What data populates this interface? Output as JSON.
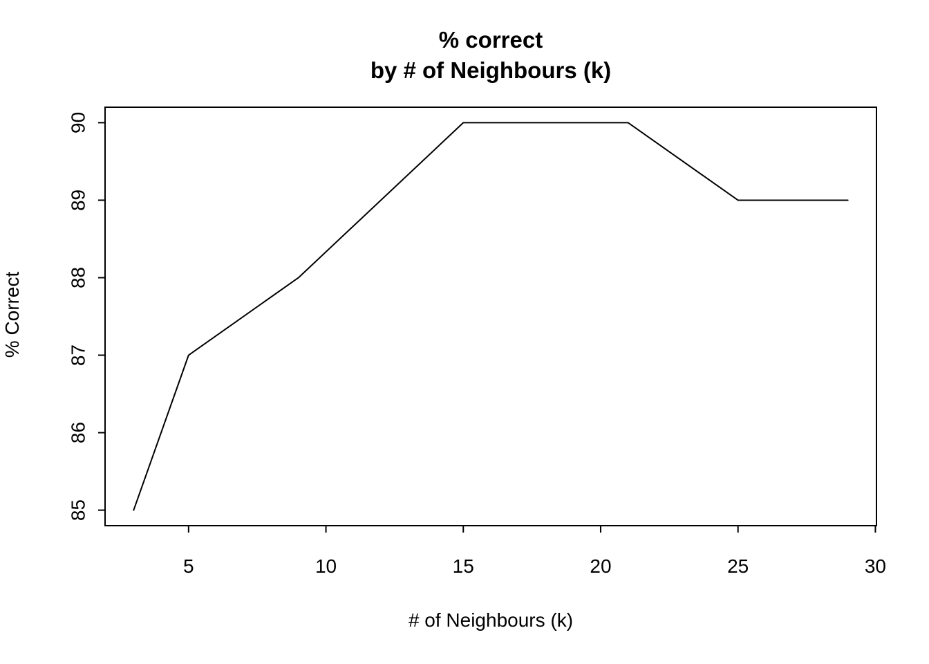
{
  "chart_data": {
    "type": "line",
    "title_line1": "% correct",
    "title_line2": "by # of Neighbours (k)",
    "xlabel": "# of Neighbours (k)",
    "ylabel": "% Correct",
    "x": [
      3,
      5,
      9,
      15,
      21,
      25,
      29
    ],
    "y": [
      85,
      87,
      88,
      90,
      90,
      89,
      89
    ],
    "xlim": [
      1.96,
      30.04
    ],
    "ylim": [
      84.8,
      90.2
    ],
    "xticks": [
      5,
      10,
      15,
      20,
      25,
      30
    ],
    "yticks": [
      85,
      86,
      87,
      88,
      89,
      90
    ],
    "grid": false,
    "legend": "none",
    "line_color": "#000000",
    "background": "#ffffff"
  }
}
